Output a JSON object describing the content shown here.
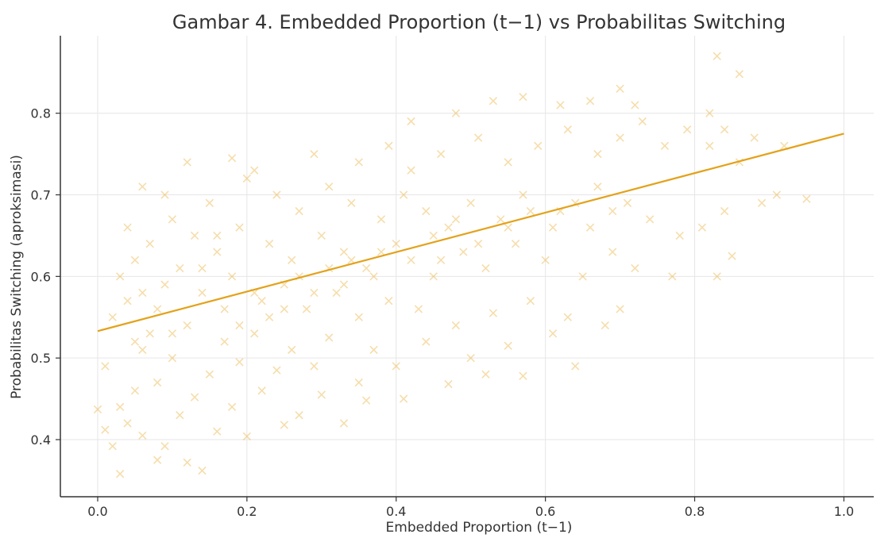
{
  "chart_data": {
    "type": "scatter",
    "title": "Gambar 4. Embedded Proportion (t−1) vs Probabilitas Switching",
    "xlabel": "Embedded Proportion (t−1)",
    "ylabel": "Probabilitas Switching (aproksimasi)",
    "xlim": [
      -0.05,
      1.04
    ],
    "ylim": [
      0.33,
      0.895
    ],
    "xticks": [
      0.0,
      0.2,
      0.4,
      0.6,
      0.8,
      1.0
    ],
    "xtick_labels": [
      "0.0",
      "0.2",
      "0.4",
      "0.6",
      "0.8",
      "1.0"
    ],
    "yticks": [
      0.4,
      0.5,
      0.6,
      0.7,
      0.8
    ],
    "ytick_labels": [
      "0.4",
      "0.5",
      "0.6",
      "0.7",
      "0.8"
    ],
    "grid": true,
    "marker": "x",
    "color": "#e8a521",
    "trend_line": {
      "x": [
        0.0,
        1.0
      ],
      "y": [
        0.533,
        0.775
      ],
      "color": "#e3a21a"
    },
    "points": [
      [
        0.03,
        0.358
      ],
      [
        0.14,
        0.362
      ],
      [
        0.08,
        0.375
      ],
      [
        0.12,
        0.372
      ],
      [
        0.02,
        0.392
      ],
      [
        0.09,
        0.392
      ],
      [
        0.06,
        0.405
      ],
      [
        0.01,
        0.412
      ],
      [
        0.2,
        0.404
      ],
      [
        0.04,
        0.42
      ],
      [
        0.11,
        0.43
      ],
      [
        0.16,
        0.41
      ],
      [
        0.0,
        0.437
      ],
      [
        0.03,
        0.44
      ],
      [
        0.18,
        0.44
      ],
      [
        0.25,
        0.418
      ],
      [
        0.27,
        0.43
      ],
      [
        0.33,
        0.42
      ],
      [
        0.05,
        0.46
      ],
      [
        0.08,
        0.47
      ],
      [
        0.13,
        0.452
      ],
      [
        0.22,
        0.46
      ],
      [
        0.3,
        0.455
      ],
      [
        0.36,
        0.448
      ],
      [
        0.41,
        0.45
      ],
      [
        0.01,
        0.49
      ],
      [
        0.06,
        0.51
      ],
      [
        0.1,
        0.5
      ],
      [
        0.15,
        0.48
      ],
      [
        0.19,
        0.495
      ],
      [
        0.24,
        0.485
      ],
      [
        0.29,
        0.49
      ],
      [
        0.35,
        0.47
      ],
      [
        0.4,
        0.49
      ],
      [
        0.47,
        0.468
      ],
      [
        0.52,
        0.48
      ],
      [
        0.57,
        0.478
      ],
      [
        0.02,
        0.55
      ],
      [
        0.04,
        0.57
      ],
      [
        0.07,
        0.53
      ],
      [
        0.12,
        0.54
      ],
      [
        0.17,
        0.52
      ],
      [
        0.21,
        0.53
      ],
      [
        0.26,
        0.51
      ],
      [
        0.31,
        0.525
      ],
      [
        0.37,
        0.51
      ],
      [
        0.44,
        0.52
      ],
      [
        0.5,
        0.5
      ],
      [
        0.55,
        0.515
      ],
      [
        0.61,
        0.53
      ],
      [
        0.64,
        0.49
      ],
      [
        0.03,
        0.6
      ],
      [
        0.05,
        0.62
      ],
      [
        0.09,
        0.59
      ],
      [
        0.11,
        0.61
      ],
      [
        0.14,
        0.58
      ],
      [
        0.18,
        0.6
      ],
      [
        0.22,
        0.57
      ],
      [
        0.25,
        0.59
      ],
      [
        0.28,
        0.56
      ],
      [
        0.32,
        0.58
      ],
      [
        0.35,
        0.55
      ],
      [
        0.39,
        0.57
      ],
      [
        0.43,
        0.56
      ],
      [
        0.48,
        0.54
      ],
      [
        0.53,
        0.555
      ],
      [
        0.58,
        0.57
      ],
      [
        0.63,
        0.55
      ],
      [
        0.68,
        0.54
      ],
      [
        0.7,
        0.56
      ],
      [
        0.04,
        0.66
      ],
      [
        0.07,
        0.64
      ],
      [
        0.1,
        0.67
      ],
      [
        0.13,
        0.65
      ],
      [
        0.16,
        0.63
      ],
      [
        0.19,
        0.66
      ],
      [
        0.23,
        0.64
      ],
      [
        0.26,
        0.62
      ],
      [
        0.3,
        0.65
      ],
      [
        0.33,
        0.63
      ],
      [
        0.36,
        0.61
      ],
      [
        0.4,
        0.64
      ],
      [
        0.42,
        0.62
      ],
      [
        0.45,
        0.6
      ],
      [
        0.49,
        0.63
      ],
      [
        0.52,
        0.61
      ],
      [
        0.56,
        0.64
      ],
      [
        0.6,
        0.62
      ],
      [
        0.65,
        0.6
      ],
      [
        0.69,
        0.63
      ],
      [
        0.72,
        0.61
      ],
      [
        0.77,
        0.6
      ],
      [
        0.83,
        0.6
      ],
      [
        0.85,
        0.625
      ],
      [
        0.06,
        0.71
      ],
      [
        0.09,
        0.7
      ],
      [
        0.15,
        0.69
      ],
      [
        0.2,
        0.72
      ],
      [
        0.24,
        0.7
      ],
      [
        0.27,
        0.68
      ],
      [
        0.31,
        0.71
      ],
      [
        0.34,
        0.69
      ],
      [
        0.38,
        0.67
      ],
      [
        0.41,
        0.7
      ],
      [
        0.44,
        0.68
      ],
      [
        0.47,
        0.66
      ],
      [
        0.5,
        0.69
      ],
      [
        0.54,
        0.67
      ],
      [
        0.57,
        0.7
      ],
      [
        0.62,
        0.68
      ],
      [
        0.66,
        0.66
      ],
      [
        0.71,
        0.69
      ],
      [
        0.74,
        0.67
      ],
      [
        0.78,
        0.65
      ],
      [
        0.81,
        0.66
      ],
      [
        0.84,
        0.68
      ],
      [
        0.89,
        0.69
      ],
      [
        0.95,
        0.695
      ],
      [
        0.91,
        0.7
      ],
      [
        0.12,
        0.74
      ],
      [
        0.18,
        0.745
      ],
      [
        0.21,
        0.73
      ],
      [
        0.29,
        0.75
      ],
      [
        0.35,
        0.74
      ],
      [
        0.39,
        0.76
      ],
      [
        0.42,
        0.73
      ],
      [
        0.46,
        0.75
      ],
      [
        0.51,
        0.77
      ],
      [
        0.55,
        0.74
      ],
      [
        0.59,
        0.76
      ],
      [
        0.63,
        0.78
      ],
      [
        0.67,
        0.75
      ],
      [
        0.7,
        0.77
      ],
      [
        0.73,
        0.79
      ],
      [
        0.76,
        0.76
      ],
      [
        0.79,
        0.78
      ],
      [
        0.82,
        0.76
      ],
      [
        0.86,
        0.74
      ],
      [
        0.88,
        0.77
      ],
      [
        0.92,
        0.76
      ],
      [
        0.42,
        0.79
      ],
      [
        0.48,
        0.8
      ],
      [
        0.53,
        0.815
      ],
      [
        0.57,
        0.82
      ],
      [
        0.62,
        0.81
      ],
      [
        0.66,
        0.815
      ],
      [
        0.7,
        0.83
      ],
      [
        0.72,
        0.81
      ],
      [
        0.82,
        0.8
      ],
      [
        0.84,
        0.78
      ],
      [
        0.86,
        0.848
      ],
      [
        0.83,
        0.87
      ],
      [
        0.25,
        0.56
      ],
      [
        0.27,
        0.6
      ],
      [
        0.29,
        0.58
      ],
      [
        0.31,
        0.61
      ],
      [
        0.33,
        0.59
      ],
      [
        0.34,
        0.62
      ],
      [
        0.37,
        0.6
      ],
      [
        0.38,
        0.63
      ],
      [
        0.45,
        0.65
      ],
      [
        0.46,
        0.62
      ],
      [
        0.48,
        0.67
      ],
      [
        0.51,
        0.64
      ],
      [
        0.55,
        0.66
      ],
      [
        0.58,
        0.68
      ],
      [
        0.61,
        0.66
      ],
      [
        0.64,
        0.69
      ],
      [
        0.67,
        0.71
      ],
      [
        0.69,
        0.68
      ],
      [
        0.17,
        0.56
      ],
      [
        0.19,
        0.54
      ],
      [
        0.21,
        0.58
      ],
      [
        0.23,
        0.55
      ],
      [
        0.14,
        0.61
      ],
      [
        0.16,
        0.65
      ],
      [
        0.08,
        0.56
      ],
      [
        0.1,
        0.53
      ],
      [
        0.06,
        0.58
      ],
      [
        0.05,
        0.52
      ]
    ]
  }
}
